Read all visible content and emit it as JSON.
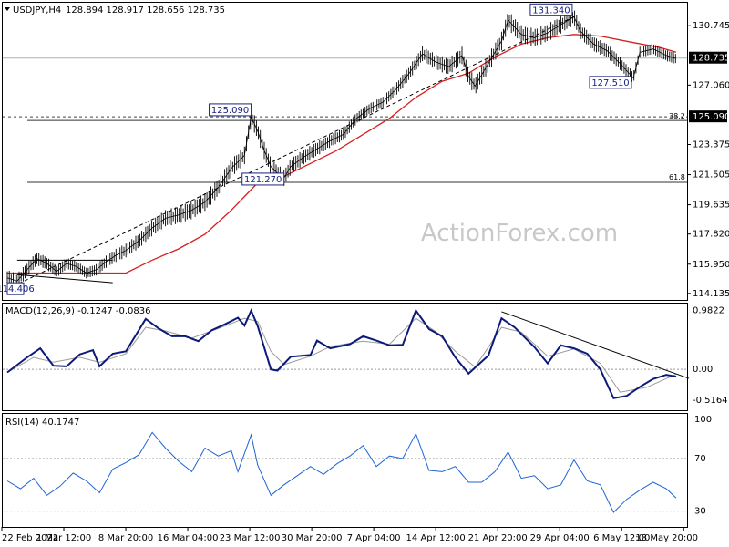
{
  "header": {
    "symbol": "USDJPY,H4",
    "ohlc": "128.894 128.917 128.656 128.735",
    "macd_label": "MACD(12,26,9) -0.1247 -0.0836",
    "rsi_label": "RSI(14) 40.1747"
  },
  "watermark": "ActionForex.com",
  "colors": {
    "price": "#000000",
    "ma": "#d61f1f",
    "macd": "#0b1a7a",
    "signal": "#9a9a9a",
    "rsi": "#1e63d6",
    "last_price_box": "#000000",
    "label_box_border": "#1a237e"
  },
  "chart_data": [
    {
      "type": "line",
      "name": "price-panel",
      "y_ticks": [
        "130.745",
        "128.735",
        "127.060",
        "125.090",
        "123.375",
        "121.505",
        "119.635",
        "117.820",
        "115.950",
        "114.135"
      ],
      "x_ticks": [
        "22 Feb 2022",
        "1 Mar 12:00",
        "8 Mar 20:00",
        "16 Mar 04:00",
        "23 Mar 12:00",
        "30 Mar 20:00",
        "7 Apr 04:00",
        "14 Apr 12:00",
        "21 Apr 20:00",
        "29 Apr 04:00",
        "6 May 12:00",
        "13 May 20:00"
      ],
      "ylim": [
        113.9,
        132.0
      ],
      "last_price": "128.735",
      "fib_level_price": "125.090",
      "fib_labels": [
        "38.2",
        "61.8"
      ],
      "fib_levels": [
        125.09,
        121.03
      ],
      "annotations": [
        "131.340",
        "127.510",
        "125.090",
        "121.270",
        "114.406"
      ],
      "price_path": [
        [
          0,
          115.1
        ],
        [
          3,
          114.9
        ],
        [
          6,
          115.6
        ],
        [
          9,
          116.3
        ],
        [
          12,
          116.0
        ],
        [
          15,
          115.5
        ],
        [
          18,
          116.0
        ],
        [
          21,
          115.8
        ],
        [
          24,
          115.4
        ],
        [
          27,
          115.6
        ],
        [
          30,
          116.1
        ],
        [
          33,
          116.5
        ],
        [
          36,
          116.8
        ],
        [
          40,
          117.4
        ],
        [
          44,
          118.2
        ],
        [
          48,
          118.8
        ],
        [
          52,
          119.0
        ],
        [
          56,
          119.3
        ],
        [
          60,
          119.8
        ],
        [
          64,
          120.7
        ],
        [
          68,
          121.9
        ],
        [
          72,
          122.7
        ],
        [
          74,
          125.1
        ],
        [
          76,
          124.2
        ],
        [
          78,
          123.0
        ],
        [
          80,
          122.0
        ],
        [
          82,
          121.6
        ],
        [
          84,
          121.3
        ],
        [
          86,
          122.0
        ],
        [
          90,
          122.6
        ],
        [
          94,
          123.1
        ],
        [
          98,
          123.6
        ],
        [
          102,
          124.0
        ],
        [
          106,
          125.0
        ],
        [
          110,
          125.6
        ],
        [
          114,
          126.0
        ],
        [
          118,
          126.8
        ],
        [
          122,
          127.8
        ],
        [
          126,
          129.0
        ],
        [
          130,
          128.5
        ],
        [
          134,
          128.2
        ],
        [
          138,
          128.9
        ],
        [
          140,
          127.6
        ],
        [
          142,
          127.0
        ],
        [
          146,
          128.4
        ],
        [
          150,
          129.8
        ],
        [
          152,
          131.1
        ],
        [
          156,
          130.2
        ],
        [
          160,
          130.0
        ],
        [
          164,
          130.3
        ],
        [
          168,
          130.8
        ],
        [
          172,
          131.3
        ],
        [
          174,
          130.4
        ],
        [
          178,
          129.6
        ],
        [
          182,
          129.2
        ],
        [
          186,
          128.4
        ],
        [
          190,
          127.5
        ],
        [
          192,
          129.1
        ],
        [
          196,
          129.3
        ],
        [
          200,
          128.9
        ],
        [
          203,
          128.7
        ]
      ],
      "ma_path": [
        [
          0,
          115.4
        ],
        [
          20,
          115.4
        ],
        [
          36,
          115.4
        ],
        [
          44,
          116.2
        ],
        [
          52,
          116.9
        ],
        [
          60,
          117.8
        ],
        [
          68,
          119.3
        ],
        [
          76,
          121.0
        ],
        [
          84,
          121.4
        ],
        [
          92,
          122.2
        ],
        [
          100,
          123.0
        ],
        [
          108,
          124.0
        ],
        [
          116,
          125.0
        ],
        [
          124,
          126.3
        ],
        [
          132,
          127.3
        ],
        [
          140,
          127.8
        ],
        [
          148,
          128.8
        ],
        [
          156,
          129.6
        ],
        [
          164,
          130.0
        ],
        [
          172,
          130.2
        ],
        [
          180,
          130.1
        ],
        [
          190,
          129.7
        ],
        [
          198,
          129.4
        ],
        [
          203,
          129.1
        ]
      ],
      "trend_line": [
        [
          0,
          114.4
        ],
        [
          172,
          131.3
        ]
      ],
      "channel_lines": [
        [
          3,
          116.2
        ],
        [
          32,
          116.2
        ],
        [
          3,
          115.3
        ],
        [
          32,
          114.8
        ]
      ]
    },
    {
      "type": "line",
      "name": "macd-panel",
      "ylim": [
        -0.65,
        1.05
      ],
      "y_ticks": [
        "0.9822",
        "0.00",
        "-0.5164"
      ],
      "macd_path": [
        [
          0,
          -0.05
        ],
        [
          6,
          0.2
        ],
        [
          10,
          0.35
        ],
        [
          14,
          0.06
        ],
        [
          18,
          0.05
        ],
        [
          22,
          0.25
        ],
        [
          26,
          0.32
        ],
        [
          28,
          0.05
        ],
        [
          32,
          0.26
        ],
        [
          36,
          0.3
        ],
        [
          42,
          0.84
        ],
        [
          46,
          0.68
        ],
        [
          50,
          0.55
        ],
        [
          54,
          0.55
        ],
        [
          58,
          0.47
        ],
        [
          62,
          0.65
        ],
        [
          66,
          0.75
        ],
        [
          70,
          0.86
        ],
        [
          72,
          0.73
        ],
        [
          74,
          0.98
        ],
        [
          76,
          0.72
        ],
        [
          80,
          0.0
        ],
        [
          82,
          -0.02
        ],
        [
          86,
          0.21
        ],
        [
          92,
          0.24
        ],
        [
          94,
          0.48
        ],
        [
          98,
          0.35
        ],
        [
          104,
          0.42
        ],
        [
          108,
          0.55
        ],
        [
          112,
          0.48
        ],
        [
          116,
          0.4
        ],
        [
          120,
          0.41
        ],
        [
          124,
          0.98
        ],
        [
          128,
          0.67
        ],
        [
          132,
          0.55
        ],
        [
          136,
          0.2
        ],
        [
          140,
          -0.07
        ],
        [
          146,
          0.23
        ],
        [
          150,
          0.85
        ],
        [
          154,
          0.7
        ],
        [
          160,
          0.37
        ],
        [
          164,
          0.1
        ],
        [
          168,
          0.4
        ],
        [
          172,
          0.35
        ],
        [
          176,
          0.26
        ],
        [
          180,
          0.0
        ],
        [
          184,
          -0.48
        ],
        [
          188,
          -0.44
        ],
        [
          192,
          -0.29
        ],
        [
          196,
          -0.16
        ],
        [
          200,
          -0.09
        ],
        [
          203,
          -0.12
        ]
      ],
      "signal_path": [
        [
          0,
          -0.05
        ],
        [
          8,
          0.2
        ],
        [
          14,
          0.12
        ],
        [
          22,
          0.2
        ],
        [
          28,
          0.12
        ],
        [
          36,
          0.26
        ],
        [
          42,
          0.7
        ],
        [
          48,
          0.64
        ],
        [
          56,
          0.52
        ],
        [
          64,
          0.68
        ],
        [
          72,
          0.85
        ],
        [
          76,
          0.8
        ],
        [
          80,
          0.3
        ],
        [
          84,
          0.08
        ],
        [
          92,
          0.22
        ],
        [
          98,
          0.38
        ],
        [
          108,
          0.47
        ],
        [
          116,
          0.42
        ],
        [
          124,
          0.85
        ],
        [
          130,
          0.63
        ],
        [
          136,
          0.3
        ],
        [
          142,
          0.04
        ],
        [
          150,
          0.7
        ],
        [
          156,
          0.62
        ],
        [
          164,
          0.22
        ],
        [
          172,
          0.34
        ],
        [
          180,
          0.1
        ],
        [
          186,
          -0.38
        ],
        [
          194,
          -0.3
        ],
        [
          203,
          -0.08
        ]
      ],
      "trend_line": [
        [
          150,
          0.96
        ],
        [
          203,
          -0.15
        ]
      ]
    },
    {
      "type": "line",
      "name": "rsi-panel",
      "ylim": [
        20,
        102
      ],
      "y_ticks": [
        "100",
        "70",
        "30"
      ],
      "rsi_path": [
        [
          0,
          53
        ],
        [
          4,
          47
        ],
        [
          8,
          55
        ],
        [
          12,
          42
        ],
        [
          16,
          49
        ],
        [
          20,
          59
        ],
        [
          24,
          53
        ],
        [
          28,
          44
        ],
        [
          32,
          62
        ],
        [
          36,
          67
        ],
        [
          40,
          73
        ],
        [
          44,
          90
        ],
        [
          48,
          78
        ],
        [
          52,
          68
        ],
        [
          56,
          60
        ],
        [
          60,
          78
        ],
        [
          64,
          72
        ],
        [
          68,
          76
        ],
        [
          70,
          60
        ],
        [
          74,
          88
        ],
        [
          76,
          65
        ],
        [
          80,
          42
        ],
        [
          84,
          50
        ],
        [
          88,
          57
        ],
        [
          92,
          64
        ],
        [
          96,
          58
        ],
        [
          100,
          66
        ],
        [
          104,
          72
        ],
        [
          108,
          80
        ],
        [
          112,
          64
        ],
        [
          116,
          72
        ],
        [
          120,
          70
        ],
        [
          124,
          89
        ],
        [
          128,
          61
        ],
        [
          132,
          60
        ],
        [
          136,
          64
        ],
        [
          140,
          52
        ],
        [
          144,
          52
        ],
        [
          148,
          60
        ],
        [
          152,
          75
        ],
        [
          156,
          55
        ],
        [
          160,
          57
        ],
        [
          164,
          47
        ],
        [
          168,
          50
        ],
        [
          172,
          69
        ],
        [
          176,
          53
        ],
        [
          180,
          50
        ],
        [
          184,
          29
        ],
        [
          188,
          39
        ],
        [
          192,
          46
        ],
        [
          196,
          52
        ],
        [
          200,
          47
        ],
        [
          203,
          40
        ]
      ],
      "levels": [
        70,
        30
      ]
    }
  ]
}
